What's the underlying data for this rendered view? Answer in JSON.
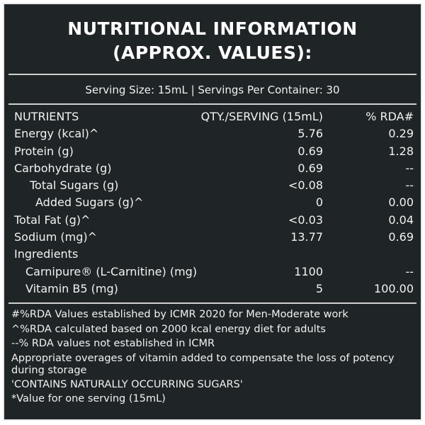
{
  "title": {
    "line1": "NUTRITIONAL INFORMATION",
    "line2": "(APPROX. VALUES):"
  },
  "serving": "Serving Size: 15mL | Servings Per Container: 30",
  "table": {
    "headers": {
      "nutrient": "NUTRIENTS",
      "qty": "QTY./SERVING (15mL)",
      "rda": "% RDA#"
    },
    "rows": [
      {
        "name": "Energy (kcal)^",
        "qty": "5.76",
        "rda": "0.29",
        "indent": 0
      },
      {
        "name": "Protein (g)",
        "qty": "0.69",
        "rda": "1.28",
        "indent": 0
      },
      {
        "name": "Carbohydrate (g)",
        "qty": "0.69",
        "rda": "--",
        "indent": 0
      },
      {
        "name": "Total Sugars (g)",
        "qty": "<0.08",
        "rda": "--",
        "indent": 1
      },
      {
        "name": "Added Sugars (g)^",
        "qty": "0",
        "rda": "0.00",
        "indent": 2
      },
      {
        "name": "Total Fat (g)^",
        "qty": "<0.03",
        "rda": "0.04",
        "indent": 0
      },
      {
        "name": "Sodium (mg)^",
        "qty": "13.77",
        "rda": "0.69",
        "indent": 0
      },
      {
        "name": "Ingredients",
        "qty": "",
        "rda": "",
        "indent": 0
      },
      {
        "name": "Carnipure® (L-Carnitine) (mg)",
        "qty": "1100",
        "rda": "--",
        "indent": 3
      },
      {
        "name": "Vitamin B5 (mg)",
        "qty": "5",
        "rda": "100.00",
        "indent": 3
      }
    ]
  },
  "footer": {
    "line1": "#%RDA Values established by ICMR 2020 for Men-Moderate work",
    "line2": "^%RDA calculated based on 2000 kcal energy diet for adults",
    "line3": "--% RDA values not established in ICMR",
    "line4": " Appropriate overages of vitamin added to compensate the loss of potency during storage",
    "line5": "'CONTAINS NATURALLY OCCURRING SUGARS'",
    "line6": "*Value for one serving (15mL)"
  }
}
